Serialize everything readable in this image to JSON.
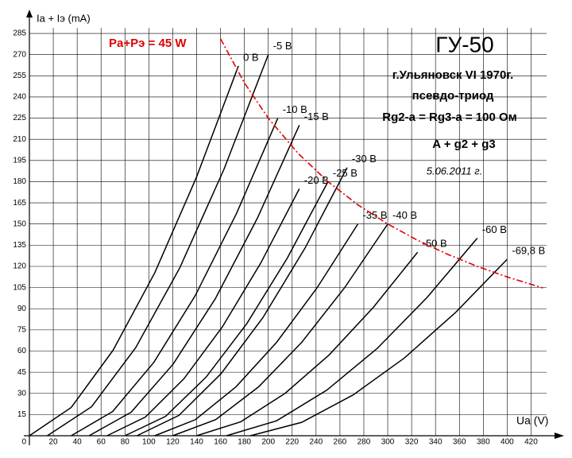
{
  "chart_data": {
    "type": "line",
    "y_label": "Ia + Iэ (mA)",
    "x_label": "Ua (V)",
    "xlim": [
      0,
      433
    ],
    "ylim": [
      0,
      289
    ],
    "xticks": [
      0,
      20,
      40,
      60,
      80,
      100,
      120,
      140,
      160,
      180,
      200,
      220,
      240,
      260,
      280,
      300,
      320,
      340,
      360,
      380,
      400,
      420
    ],
    "yticks": [
      15,
      30,
      45,
      60,
      75,
      90,
      105,
      120,
      135,
      150,
      165,
      180,
      195,
      210,
      225,
      240,
      255,
      270,
      285
    ],
    "grid": true,
    "annotations": [
      "ГУ-50",
      "г.Ульяновск VI 1970г.",
      "псевдо-триод",
      "Rg2-a = Rg3-a = 100 Ом",
      "A + g2 + g3",
      "5.06.2011 г."
    ],
    "series": [
      {
        "name": "0 B",
        "color": "#000000",
        "x": [
          0,
          35,
          70,
          105,
          140,
          175
        ],
        "values": [
          0,
          20,
          60.5,
          115.5,
          183.4,
          262
        ]
      },
      {
        "name": "-5 B",
        "color": "#000000",
        "x": [
          15,
          52,
          89,
          126,
          163,
          200
        ],
        "values": [
          0,
          20.5,
          62.4,
          119.1,
          189,
          270
        ]
      },
      {
        "name": "-10 B",
        "color": "#000000",
        "x": [
          35,
          69.6,
          104.2,
          138.8,
          173.4,
          208
        ],
        "values": [
          0,
          17.1,
          52,
          99.2,
          157.5,
          225
        ]
      },
      {
        "name": "-15 B",
        "color": "#000000",
        "x": [
          50,
          85.2,
          120.4,
          155.6,
          190.8,
          226
        ],
        "values": [
          0,
          16.7,
          50.8,
          97,
          154,
          220
        ]
      },
      {
        "name": "-20 B",
        "color": "#000000",
        "x": [
          65,
          97.2,
          129.4,
          161.6,
          193.8,
          226
        ],
        "values": [
          0,
          13.3,
          40.4,
          77.2,
          122.5,
          175
        ]
      },
      {
        "name": "-25 B",
        "color": "#000000",
        "x": [
          80,
          114,
          148,
          182,
          216,
          250
        ],
        "values": [
          0,
          13.7,
          41.6,
          79.4,
          126,
          180
        ]
      },
      {
        "name": "-30 B",
        "color": "#000000",
        "x": [
          90,
          125.2,
          160.4,
          195.6,
          230.8,
          266
        ],
        "values": [
          0,
          14.4,
          43.9,
          83.8,
          133,
          190
        ]
      },
      {
        "name": "-35 B",
        "color": "#000000",
        "x": [
          105,
          139,
          173,
          207,
          241,
          275
        ],
        "values": [
          0,
          11.4,
          34.7,
          66.2,
          105,
          150
        ]
      },
      {
        "name": "-40 B",
        "color": "#000000",
        "x": [
          120,
          156,
          192,
          228,
          264,
          300
        ],
        "values": [
          0,
          11.4,
          34.7,
          66.2,
          105,
          150
        ]
      },
      {
        "name": "-50 B",
        "color": "#000000",
        "x": [
          140,
          177,
          214,
          251,
          288,
          325
        ],
        "values": [
          0,
          9.9,
          30,
          57.3,
          91,
          130
        ]
      },
      {
        "name": "-60 B",
        "color": "#000000",
        "x": [
          165,
          207,
          249,
          291,
          333,
          375
        ],
        "values": [
          0,
          10.6,
          32.3,
          61.7,
          98,
          140
        ]
      },
      {
        "name": "-69,8 B",
        "color": "#000000",
        "x": [
          185,
          228,
          271,
          314,
          357,
          400
        ],
        "values": [
          0,
          9.5,
          28.9,
          55.1,
          87.5,
          125
        ]
      },
      {
        "name": "Pa+Pэ = 45 W",
        "color": "#e00000",
        "dashed": true,
        "x": [
          160,
          180,
          200,
          225,
          250,
          275,
          300,
          325,
          350,
          375,
          400,
          430
        ],
        "values": [
          281.25,
          250,
          225,
          200,
          180,
          163.6,
          150,
          138.5,
          128.6,
          120,
          112.5,
          104.7
        ]
      }
    ]
  }
}
